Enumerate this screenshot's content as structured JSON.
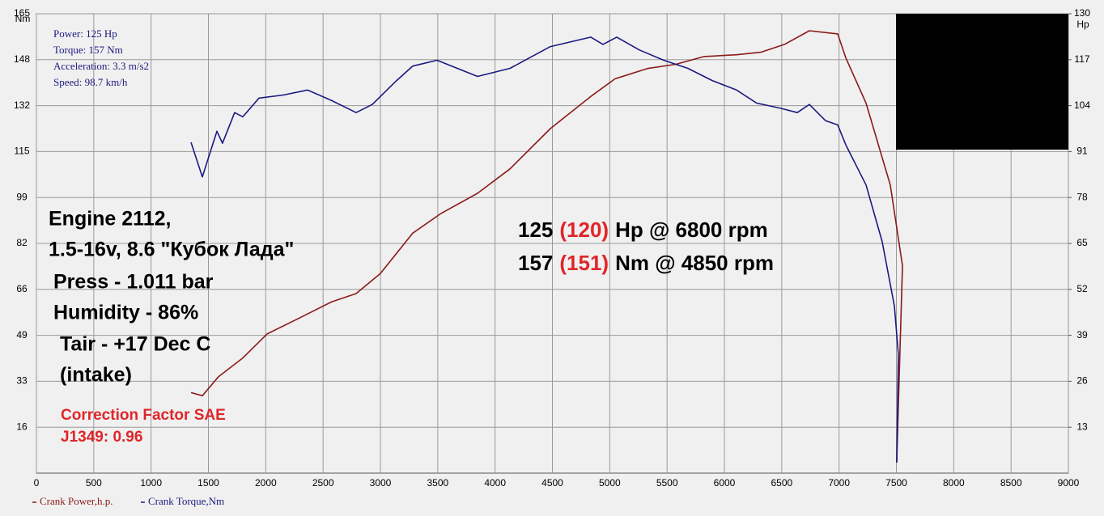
{
  "chart_data": {
    "type": "line",
    "y_unit": "Nm",
    "y2_unit": "Hp",
    "info": [
      "Power: 125 Hp",
      "Torque: 157 Nm",
      "Acceleration: 3.3 m/s2",
      "Speed: 98.7 km/h"
    ],
    "specs": [
      "Engine 2112,",
      "1.5-16v, 8.6 \"Кубок Лада\"",
      "Press - 1.011 bar",
      "Humidity - 86%",
      "Tair - +17 Dec C",
      "(intake)"
    ],
    "correction": [
      "Correction Factor SAE",
      "J1349: 0.96"
    ],
    "results": [
      {
        "value": "125",
        "corrected": "(120)",
        "rest": "Hp @ 6800 rpm"
      },
      {
        "value": "157",
        "corrected": "(151)",
        "rest": "Nm @ 4850 rpm"
      }
    ],
    "xlim": [
      0,
      9000
    ],
    "xticks": [
      0,
      500,
      1000,
      1500,
      2000,
      2500,
      3000,
      3500,
      4000,
      4500,
      5000,
      5500,
      6000,
      6500,
      7000,
      7500,
      8000,
      8500,
      9000
    ],
    "ylim": [
      0,
      165
    ],
    "yticks": [
      {
        "value": 16.5,
        "label": "16"
      },
      33,
      {
        "value": 49.5,
        "label": "49"
      },
      66,
      {
        "value": 82.5,
        "label": "82"
      },
      99,
      {
        "value": 115.5,
        "label": "115"
      },
      132,
      {
        "value": 148.5,
        "label": "148"
      },
      165
    ],
    "y2lim": [
      0,
      130
    ],
    "y2ticks": [
      13,
      26,
      39,
      52,
      65,
      78,
      91,
      104,
      117,
      130
    ],
    "grid": true,
    "series": [
      {
        "name": "Crank Power,h.p.",
        "color": "#8b1a1a",
        "axis": "y2",
        "x": [
          1348,
          1447,
          1588,
          1800,
          2012,
          2294,
          2576,
          2788,
          3000,
          3282,
          3529,
          3847,
          4130,
          4482,
          4835,
          5047,
          5329,
          5576,
          5823,
          6106,
          6318,
          6529,
          6741,
          6988,
          7059,
          7235,
          7447,
          7553,
          7503
        ],
        "values": [
          22.8,
          21.9,
          27.3,
          32.6,
          39.4,
          43.9,
          48.5,
          50.8,
          56.5,
          67.9,
          73.5,
          79.2,
          86.1,
          97.5,
          106.6,
          111.6,
          114.5,
          115.7,
          117.9,
          118.4,
          119.1,
          121.4,
          125.2,
          124.3,
          117.5,
          104.7,
          81.5,
          58.7,
          3.0
        ]
      },
      {
        "name": "Crank Torque,Nm",
        "color": "#1a1a80",
        "axis": "y",
        "x": [
          1348,
          1447,
          1574,
          1623,
          1729,
          1800,
          1941,
          2153,
          2365,
          2576,
          2788,
          2929,
          3141,
          3282,
          3494,
          3847,
          4130,
          4482,
          4835,
          4941,
          5061,
          5259,
          5471,
          5682,
          5894,
          6106,
          6282,
          6494,
          6635,
          6741,
          6882,
          6988,
          7059,
          7235,
          7376,
          7482,
          7517,
          7503
        ],
        "values": [
          118.8,
          106.4,
          122.8,
          118.5,
          129.5,
          128,
          134.7,
          135.8,
          137.6,
          133.8,
          129.5,
          132.4,
          141,
          146.2,
          148.3,
          142.5,
          145.4,
          153.2,
          156.6,
          154,
          156.6,
          152,
          148.3,
          145.4,
          141,
          137.6,
          132.9,
          131,
          129.5,
          132.4,
          126.6,
          125.1,
          117.9,
          103.5,
          83.2,
          60.1,
          42.8,
          3.8
        ]
      }
    ]
  }
}
